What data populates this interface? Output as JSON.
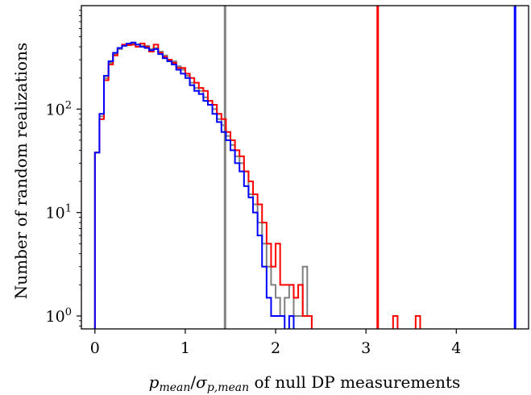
{
  "chart_data": {
    "type": "step-histogram",
    "title": "",
    "xlabel": {
      "var_main": "p",
      "var_main_sub": "mean",
      "slash": "/",
      "var_sigma": "σ",
      "var_sigma_sub": "p,mean",
      "rest": " of null DP measurements"
    },
    "ylabel": "Number of random realizations",
    "xlim": [
      -0.15,
      4.8
    ],
    "ylim": [
      0.75,
      1000
    ],
    "yscale": "log",
    "x_ticks": [
      0,
      1,
      2,
      3,
      4
    ],
    "x_tick_labels": [
      "0",
      "1",
      "2",
      "3",
      "4"
    ],
    "y_ticks": [
      1,
      10,
      100
    ],
    "y_tick_labels": [
      {
        "base": "10",
        "exp": "0"
      },
      {
        "base": "10",
        "exp": "1"
      },
      {
        "base": "10",
        "exp": "2"
      }
    ],
    "grid": false,
    "legend": "none",
    "bin_width": 0.05,
    "series": [
      {
        "color": "#808080",
        "marker_line_x": 1.44,
        "bins_start": 0.0,
        "counts": [
          38,
          85,
          200,
          280,
          340,
          380,
          410,
          420,
          430,
          420,
          410,
          410,
          380,
          390,
          360,
          330,
          300,
          290,
          260,
          240,
          210,
          180,
          160,
          150,
          130,
          120,
          100,
          80,
          70,
          55,
          45,
          35,
          30,
          25,
          15,
          12,
          8,
          5,
          3,
          2,
          1.5,
          1,
          1.5,
          2,
          1,
          1,
          3,
          1,
          0,
          0,
          0,
          0
        ]
      },
      {
        "color": "#ff0000",
        "marker_line_x": 3.13,
        "bins_start": 0.0,
        "counts": [
          38,
          80,
          190,
          270,
          330,
          390,
          420,
          415,
          420,
          400,
          430,
          400,
          360,
          420,
          350,
          320,
          300,
          280,
          250,
          250,
          220,
          200,
          180,
          160,
          150,
          120,
          110,
          90,
          80,
          60,
          50,
          40,
          35,
          25,
          20,
          15,
          12,
          8,
          5,
          3,
          5,
          2,
          2,
          2,
          1.5,
          2,
          1,
          1,
          0,
          0,
          0,
          0,
          0,
          0,
          0,
          0,
          0,
          0,
          0,
          0,
          0,
          0,
          0,
          0,
          0,
          0,
          0,
          0,
          0,
          0,
          0,
          0
        ],
        "extra_bins": [
          {
            "x": 3.3,
            "count": 1
          },
          {
            "x": 3.55,
            "count": 1
          }
        ]
      },
      {
        "color": "#0000ff",
        "marker_line_x": 4.65,
        "bins_start": 0.0,
        "counts": [
          38,
          90,
          210,
          290,
          350,
          390,
          410,
          430,
          440,
          420,
          400,
          390,
          370,
          380,
          340,
          310,
          290,
          270,
          240,
          220,
          200,
          170,
          150,
          140,
          120,
          110,
          90,
          75,
          60,
          50,
          40,
          30,
          25,
          18,
          14,
          10,
          6,
          3,
          1.5,
          1,
          1,
          1,
          0,
          1,
          0,
          0,
          0,
          0,
          0,
          0,
          0
        ]
      }
    ]
  }
}
